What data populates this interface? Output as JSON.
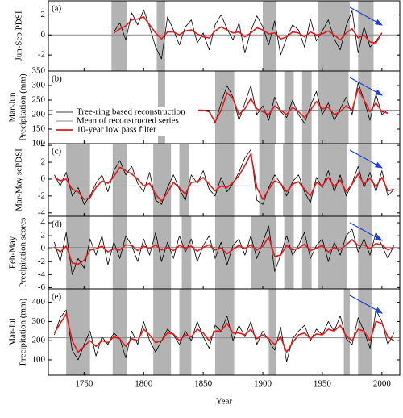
{
  "chart_data": [
    {
      "type": "line",
      "label": "(a)",
      "ylabel": [
        "Jun-Sep PDSI"
      ],
      "x": [
        1775,
        1780,
        1785,
        1790,
        1795,
        1800,
        1805,
        1810,
        1815,
        1820,
        1825,
        1830,
        1835,
        1840,
        1845,
        1850,
        1855,
        1860,
        1865,
        1870,
        1875,
        1880,
        1885,
        1890,
        1895,
        1900,
        1905,
        1910,
        1915,
        1920,
        1925,
        1930,
        1935,
        1940,
        1945,
        1950,
        1955,
        1960,
        1965,
        1970,
        1975,
        1980,
        1985,
        1990,
        1995,
        2000
      ],
      "series": [
        {
          "color": "#000000",
          "values": [
            0.3,
            1.2,
            -0.5,
            2.2,
            1.0,
            2.5,
            0.8,
            -1.2,
            -2.4,
            1.8,
            0.5,
            -1.0,
            0.8,
            1.5,
            -0.8,
            0.2,
            -1.5,
            1.0,
            2.0,
            0.6,
            -0.5,
            1.2,
            -1.8,
            0.4,
            1.9,
            0.8,
            -1.0,
            1.4,
            -2.0,
            -0.3,
            1.0,
            0.5,
            -1.2,
            1.6,
            -0.6,
            0.4,
            1.5,
            -0.4,
            -1.5,
            0.9,
            2.4,
            -1.8,
            0.8,
            -1.2,
            -0.6,
            0.2
          ]
        },
        {
          "color": "#e41a1c",
          "values": [
            0.2,
            0.6,
            0.9,
            1.5,
            1.6,
            1.8,
            1.0,
            0.2,
            -0.4,
            0.3,
            0.3,
            0.0,
            0.4,
            0.5,
            0.1,
            -0.2,
            -0.3,
            0.4,
            0.8,
            0.5,
            0.2,
            0.3,
            -0.2,
            0.2,
            0.7,
            0.5,
            0.1,
            0.2,
            -0.4,
            -0.2,
            0.3,
            0.2,
            -0.2,
            0.3,
            0.0,
            0.1,
            0.4,
            0.0,
            -0.5,
            0.2,
            0.6,
            -0.3,
            0.0,
            -0.7,
            -0.8,
            0.2
          ]
        }
      ],
      "mean": 0,
      "shaded": [
        [
          1773,
          1786
        ],
        [
          1811,
          1818
        ],
        [
          1900,
          1911
        ],
        [
          1946,
          1973
        ],
        [
          1980,
          1993
        ]
      ],
      "xlim": [
        1720,
        2015
      ],
      "xticks": [
        1750,
        1800,
        1850,
        1900,
        1950,
        2000
      ],
      "ylim": [
        -3.6,
        3.4
      ],
      "yticks": [
        -2,
        0,
        2
      ]
    },
    {
      "type": "line",
      "label": "(b)",
      "ylabel": [
        "Mar-Jun",
        "Precipitation (mm)"
      ],
      "x": [
        1835,
        1840,
        1845,
        1850,
        1855,
        1860,
        1865,
        1870,
        1875,
        1880,
        1885,
        1890,
        1895,
        1900,
        1905,
        1910,
        1915,
        1920,
        1925,
        1930,
        1935,
        1940,
        1945,
        1950,
        1955,
        1960,
        1965,
        1970,
        1975,
        1980,
        1985,
        1990,
        1995,
        2000,
        2005
      ],
      "series": [
        {
          "name": "Tree-ring based reconstruction",
          "color": "#000000",
          "values": [
            215,
            215,
            215,
            215,
            215,
            170,
            240,
            300,
            260,
            180,
            240,
            300,
            200,
            230,
            180,
            260,
            210,
            190,
            250,
            200,
            170,
            230,
            280,
            200,
            240,
            180,
            220,
            260,
            200,
            310,
            250,
            180,
            270,
            200,
            215
          ]
        },
        {
          "name": "10-year low pass filter",
          "color": "#e41a1c",
          "values": [
            215,
            215,
            215,
            215,
            210,
            175,
            215,
            275,
            255,
            200,
            220,
            255,
            220,
            210,
            200,
            230,
            215,
            200,
            225,
            210,
            190,
            215,
            245,
            220,
            225,
            200,
            210,
            230,
            215,
            290,
            250,
            210,
            240,
            210,
            205
          ]
        }
      ],
      "mean": 215,
      "mean_label": "Mean of reconstructed series",
      "shaded": [
        [
          1812,
          1818
        ],
        [
          1860,
          1876
        ],
        [
          1897,
          1911
        ],
        [
          1918,
          1926
        ],
        [
          1933,
          1941
        ],
        [
          1946,
          1972
        ],
        [
          1980,
          1991
        ]
      ],
      "xlim": [
        1720,
        2015
      ],
      "xticks": [
        1750,
        1800,
        1850,
        1900,
        1950,
        2000
      ],
      "ylim": [
        100,
        350
      ],
      "yticks": [
        100,
        150,
        200,
        250,
        300,
        350
      ]
    },
    {
      "type": "line",
      "label": "(c)",
      "ylabel": [
        "Mar-May scPDSI"
      ],
      "x": [
        1725,
        1730,
        1735,
        1740,
        1745,
        1750,
        1755,
        1760,
        1765,
        1770,
        1775,
        1780,
        1785,
        1790,
        1795,
        1800,
        1805,
        1810,
        1815,
        1820,
        1825,
        1830,
        1835,
        1840,
        1845,
        1850,
        1855,
        1860,
        1865,
        1870,
        1875,
        1880,
        1885,
        1890,
        1895,
        1900,
        1905,
        1910,
        1915,
        1920,
        1925,
        1930,
        1935,
        1940,
        1945,
        1950,
        1955,
        1960,
        1965,
        1970,
        1975,
        1980,
        1985,
        1990,
        1995,
        2000,
        2005,
        2010
      ],
      "series": [
        {
          "color": "#000000",
          "values": [
            0.5,
            -0.8,
            0.8,
            -2.0,
            -1.0,
            -3.0,
            -2.0,
            -0.5,
            0.5,
            -1.5,
            1.0,
            2.2,
            0.5,
            1.5,
            -0.5,
            -1.5,
            0.8,
            -2.5,
            -3.0,
            -1.0,
            0.5,
            -1.2,
            -2.5,
            0.5,
            -0.5,
            1.0,
            -1.2,
            -2.0,
            0.2,
            -1.5,
            -0.5,
            0.8,
            2.5,
            3.5,
            -2.5,
            -3.0,
            -1.0,
            0.5,
            -0.5,
            -2.0,
            -0.3,
            0.5,
            -1.5,
            -2.8,
            0.2,
            -1.0,
            1.0,
            -1.5,
            0.5,
            -2.0,
            -0.5,
            1.5,
            -1.0,
            0.8,
            -1.5,
            1.0,
            -2.0,
            -1.2
          ]
        },
        {
          "color": "#e41a1c",
          "values": [
            0.2,
            -0.2,
            0.0,
            -1.2,
            -1.5,
            -2.4,
            -2.2,
            -1.0,
            -0.2,
            -0.5,
            0.3,
            1.4,
            1.0,
            0.6,
            0.0,
            -0.8,
            -0.5,
            -1.8,
            -2.6,
            -1.6,
            -0.4,
            -1.0,
            -1.8,
            -0.4,
            -0.3,
            0.2,
            -0.6,
            -1.4,
            -0.8,
            -1.0,
            -0.4,
            0.4,
            1.6,
            3.0,
            -1.0,
            -2.4,
            -1.2,
            -0.2,
            -0.5,
            -1.5,
            -0.6,
            -0.3,
            -1.2,
            -2.0,
            -0.4,
            -0.8,
            0.2,
            -0.9,
            -0.1,
            -1.5,
            -0.6,
            0.6,
            -0.6,
            0.1,
            -0.9,
            0.2,
            -1.4,
            -1.2
          ]
        }
      ],
      "mean": -0.8,
      "shaded": [
        [
          1735,
          1755
        ],
        [
          1774,
          1786
        ],
        [
          1808,
          1823
        ],
        [
          1830,
          1838
        ],
        [
          1860,
          1876
        ],
        [
          1897,
          1910
        ],
        [
          1917,
          1926
        ],
        [
          1933,
          1941
        ],
        [
          1946,
          1971
        ],
        [
          1980,
          1991
        ]
      ],
      "xlim": [
        1720,
        2015
      ],
      "xticks": [
        1750,
        1800,
        1850,
        1900,
        1950,
        2000
      ],
      "ylim": [
        -4.4,
        4.2
      ],
      "yticks": [
        -4,
        -2,
        0,
        2,
        4
      ]
    },
    {
      "type": "line",
      "label": "(d)",
      "ylabel": [
        "Feb-May",
        "Precipitation scores"
      ],
      "x": [
        1725,
        1730,
        1735,
        1740,
        1745,
        1750,
        1755,
        1760,
        1765,
        1770,
        1775,
        1780,
        1785,
        1790,
        1795,
        1800,
        1805,
        1810,
        1815,
        1820,
        1825,
        1830,
        1835,
        1840,
        1845,
        1850,
        1855,
        1860,
        1865,
        1870,
        1875,
        1880,
        1885,
        1890,
        1895,
        1900,
        1905,
        1910,
        1915,
        1920,
        1925,
        1930,
        1935,
        1940,
        1945,
        1950,
        1955,
        1960,
        1965,
        1970,
        1975,
        1980,
        1985,
        1990,
        1995,
        2000,
        2005,
        2010
      ],
      "series": [
        {
          "color": "#000000",
          "values": [
            1.0,
            -2.0,
            2.5,
            -4.0,
            -1.5,
            -3.0,
            1.5,
            -1.0,
            2.0,
            -2.5,
            1.0,
            -1.5,
            2.0,
            0.5,
            -2.0,
            1.5,
            -1.0,
            2.5,
            -2.0,
            1.0,
            -1.5,
            2.0,
            -0.5,
            1.5,
            -2.0,
            0.5,
            2.0,
            -1.5,
            1.0,
            -2.5,
            0.5,
            1.5,
            -1.0,
            2.0,
            -1.5,
            1.0,
            3.5,
            -3.5,
            -1.0,
            2.0,
            -1.0,
            0.5,
            2.5,
            -1.5,
            0.5,
            1.5,
            -2.0,
            1.0,
            -1.0,
            2.0,
            3.0,
            -0.5,
            1.5,
            -1.0,
            2.5,
            0.5,
            -1.5,
            0.5
          ]
        },
        {
          "color": "#e41a1c",
          "values": [
            0.3,
            -0.5,
            0.4,
            -2.2,
            -2.4,
            -1.8,
            -0.2,
            0.0,
            0.4,
            -0.5,
            0.0,
            -0.2,
            0.6,
            0.5,
            -0.3,
            0.4,
            0.0,
            0.6,
            -0.2,
            0.2,
            -0.3,
            0.5,
            0.1,
            0.4,
            -0.4,
            0.2,
            0.6,
            -0.2,
            0.1,
            -0.8,
            -0.1,
            0.5,
            0.0,
            0.6,
            -0.2,
            0.4,
            1.8,
            -1.2,
            -1.0,
            0.5,
            -0.2,
            0.1,
            0.7,
            -0.3,
            0.1,
            0.5,
            -0.5,
            0.2,
            -0.1,
            0.6,
            1.4,
            0.5,
            0.6,
            0.0,
            0.8,
            0.6,
            -0.2,
            0.2
          ]
        }
      ],
      "mean": 0.2,
      "shaded": [
        [
          1735,
          1755
        ],
        [
          1774,
          1786
        ],
        [
          1808,
          1823
        ],
        [
          1832,
          1840
        ],
        [
          1860,
          1876
        ],
        [
          1890,
          1911
        ],
        [
          1918,
          1926
        ],
        [
          1933,
          1941
        ],
        [
          1946,
          1971
        ],
        [
          1980,
          1992
        ]
      ],
      "xlim": [
        1720,
        2015
      ],
      "xticks": [
        1750,
        1800,
        1850,
        1900,
        1950,
        2000
      ],
      "ylim": [
        -6.2,
        5
      ],
      "yticks": [
        -6,
        -4,
        -2,
        0,
        2,
        4
      ]
    },
    {
      "type": "line",
      "label": "(e)",
      "ylabel": [
        "Mar-Jul",
        "Precipitation (mm)"
      ],
      "xlabel": "Year",
      "x": [
        1725,
        1730,
        1735,
        1740,
        1745,
        1750,
        1755,
        1760,
        1765,
        1770,
        1775,
        1780,
        1785,
        1790,
        1795,
        1800,
        1805,
        1810,
        1815,
        1820,
        1825,
        1830,
        1835,
        1840,
        1845,
        1850,
        1855,
        1860,
        1865,
        1870,
        1875,
        1880,
        1885,
        1890,
        1895,
        1900,
        1905,
        1910,
        1915,
        1920,
        1925,
        1930,
        1935,
        1940,
        1945,
        1950,
        1955,
        1960,
        1965,
        1970,
        1975,
        1980,
        1985,
        1990,
        1995,
        2000,
        2005,
        2010
      ],
      "series": [
        {
          "color": "#000000",
          "values": [
            230,
            320,
            360,
            150,
            100,
            180,
            250,
            120,
            220,
            180,
            240,
            210,
            110,
            250,
            180,
            300,
            200,
            140,
            200,
            260,
            230,
            180,
            250,
            200,
            300,
            220,
            160,
            280,
            250,
            330,
            200,
            280,
            220,
            300,
            180,
            250,
            200,
            150,
            270,
            90,
            210,
            250,
            280,
            200,
            260,
            230,
            300,
            250,
            330,
            210,
            180,
            320,
            250,
            160,
            360,
            300,
            180,
            240
          ]
        },
        {
          "color": "#e41a1c",
          "values": [
            240,
            290,
            340,
            200,
            140,
            170,
            200,
            170,
            200,
            190,
            220,
            210,
            170,
            210,
            200,
            260,
            230,
            190,
            200,
            240,
            235,
            200,
            230,
            220,
            260,
            240,
            200,
            250,
            250,
            290,
            240,
            240,
            230,
            260,
            210,
            230,
            210,
            180,
            220,
            140,
            190,
            230,
            240,
            210,
            235,
            230,
            260,
            250,
            280,
            225,
            200,
            260,
            250,
            200,
            300,
            290,
            220,
            200
          ]
        }
      ],
      "mean": 215,
      "shaded": [
        [
          1735,
          1755
        ],
        [
          1774,
          1786
        ],
        [
          1808,
          1823
        ],
        [
          1830,
          1840
        ],
        [
          1860,
          1876
        ],
        [
          1905,
          1911
        ],
        [
          1968,
          1973
        ],
        [
          1980,
          1992
        ]
      ],
      "xlim": [
        1720,
        2015
      ],
      "xticks": [
        1750,
        1800,
        1850,
        1900,
        1950,
        2000
      ],
      "ylim": [
        20,
        470
      ],
      "yticks": [
        100,
        200,
        300,
        400
      ]
    }
  ]
}
